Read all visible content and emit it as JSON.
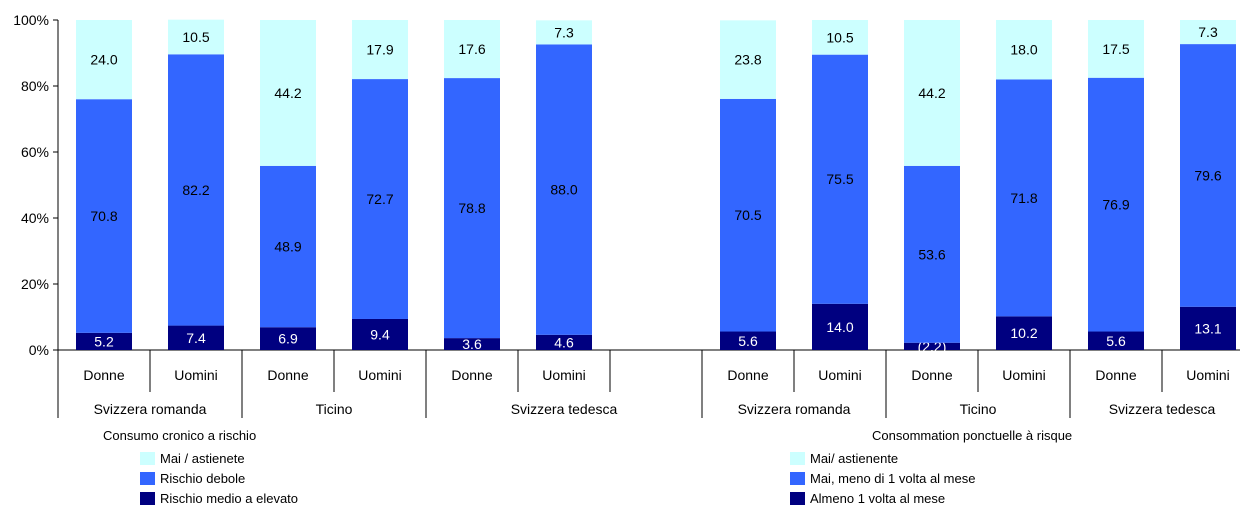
{
  "chart_data": {
    "type": "bar",
    "stacked": true,
    "ylim": [
      0,
      100
    ],
    "y_ticks": [
      "0%",
      "20%",
      "40%",
      "60%",
      "80%",
      "100%"
    ],
    "grid": false,
    "colors": {
      "low": "#000080",
      "mid": "#3366FF",
      "top": "#CCFFFF"
    },
    "groups": [
      {
        "title": "Consumo cronico a rischio",
        "regions": [
          {
            "label": "Svizzera romanda",
            "bars": [
              {
                "label": "Donne",
                "values": [
                  5.2,
                  70.8,
                  24.0
                ],
                "labels": [
                  "5.2",
                  "70.8",
                  "24.0"
                ]
              },
              {
                "label": "Uomini",
                "values": [
                  7.4,
                  82.2,
                  10.5
                ],
                "labels": [
                  "7.4",
                  "82.2",
                  "10.5"
                ]
              }
            ]
          },
          {
            "label": "Ticino",
            "bars": [
              {
                "label": "Donne",
                "values": [
                  6.9,
                  48.9,
                  44.2
                ],
                "labels": [
                  "6.9",
                  "48.9",
                  "44.2"
                ]
              },
              {
                "label": "Uomini",
                "values": [
                  9.4,
                  72.7,
                  17.9
                ],
                "labels": [
                  "9.4",
                  "72.7",
                  "17.9"
                ]
              }
            ]
          },
          {
            "label": "Svizzera tedesca",
            "bars": [
              {
                "label": "Donne",
                "values": [
                  3.6,
                  78.8,
                  17.6
                ],
                "labels": [
                  "3.6",
                  "78.8",
                  "17.6"
                ]
              },
              {
                "label": "Uomini",
                "values": [
                  4.6,
                  88.0,
                  7.3
                ],
                "labels": [
                  "4.6",
                  "88.0",
                  "7.3"
                ]
              }
            ]
          }
        ],
        "legend": [
          "Mai / astienete",
          "Rischio debole",
          "Rischio medio a elevato"
        ]
      },
      {
        "title": "Consommation ponctuelle à risque",
        "regions": [
          {
            "label": "Svizzera romanda",
            "bars": [
              {
                "label": "Donne",
                "values": [
                  5.6,
                  70.5,
                  23.8
                ],
                "labels": [
                  "5.6",
                  "70.5",
                  "23.8"
                ]
              },
              {
                "label": "Uomini",
                "values": [
                  14.0,
                  75.5,
                  10.5
                ],
                "labels": [
                  "14.0",
                  "75.5",
                  "10.5"
                ]
              }
            ]
          },
          {
            "label": "Ticino",
            "bars": [
              {
                "label": "Donne",
                "values": [
                  2.2,
                  53.6,
                  44.2
                ],
                "labels": [
                  "(2.2)",
                  "53.6",
                  "44.2"
                ]
              },
              {
                "label": "Uomini",
                "values": [
                  10.2,
                  71.8,
                  18.0
                ],
                "labels": [
                  "10.2",
                  "71.8",
                  "18.0"
                ]
              }
            ]
          },
          {
            "label": "Svizzera tedesca",
            "bars": [
              {
                "label": "Donne",
                "values": [
                  5.6,
                  76.9,
                  17.5
                ],
                "labels": [
                  "5.6",
                  "76.9",
                  "17.5"
                ]
              },
              {
                "label": "Uomini",
                "values": [
                  13.1,
                  79.6,
                  7.3
                ],
                "labels": [
                  "13.1",
                  "79.6",
                  "7.3"
                ]
              }
            ]
          }
        ],
        "legend": [
          "Mai/ astienente",
          "Mai, meno di 1 volta al mese",
          "Almeno 1 volta al mese"
        ]
      }
    ]
  }
}
